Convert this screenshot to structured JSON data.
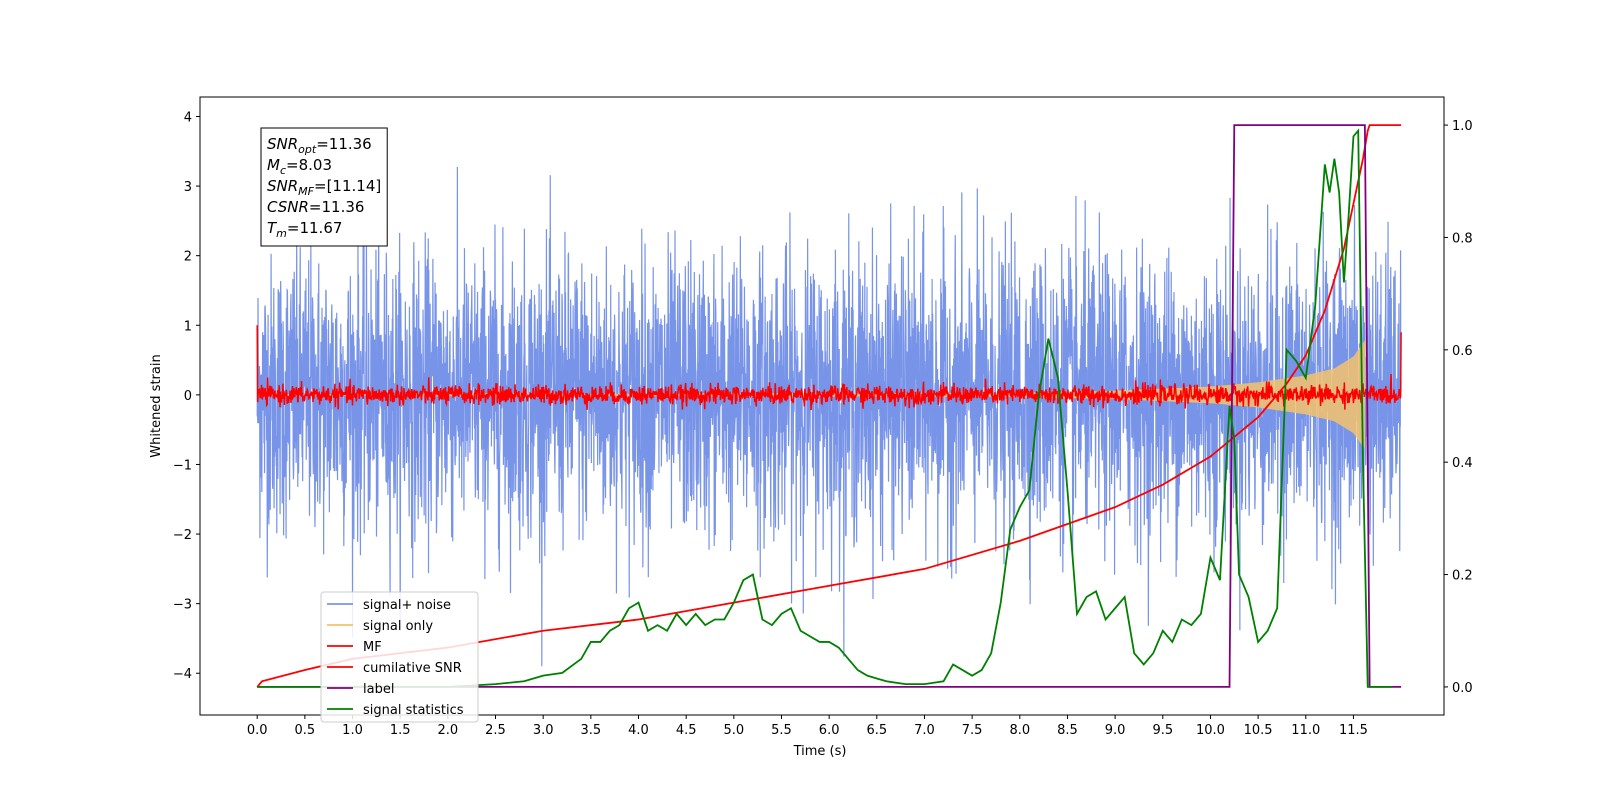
{
  "chart_data": {
    "type": "line",
    "title": "",
    "xlabel": "Time (s)",
    "ylabel": "Whitened strain",
    "xlim": [
      -0.6,
      12.45
    ],
    "ylim": [
      -4.6,
      4.28
    ],
    "y2lim": [
      -0.05,
      1.05
    ],
    "x_ticks": [
      0.0,
      0.5,
      1.0,
      1.5,
      2.0,
      2.5,
      3.0,
      3.5,
      4.0,
      4.5,
      5.0,
      5.5,
      6.0,
      6.5,
      7.0,
      7.5,
      8.0,
      8.5,
      9.0,
      9.5,
      10.0,
      10.5,
      11.0,
      11.5
    ],
    "x_tick_labels": [
      "0.0",
      "0.5",
      "1.0",
      "1.5",
      "2.0",
      "2.5",
      "3.0",
      "3.5",
      "4.0",
      "4.5",
      "5.0",
      "5.5",
      "6.0",
      "6.5",
      "7.0",
      "7.5",
      "8.0",
      "8.5",
      "9.0",
      "9.5",
      "10.0",
      "10.5",
      "11.0",
      "11.5"
    ],
    "y_ticks": [
      -4,
      -3,
      -2,
      -1,
      0,
      1,
      2,
      3,
      4
    ],
    "y_tick_labels": [
      "−4",
      "−3",
      "−2",
      "−1",
      "0",
      "1",
      "2",
      "3",
      "4"
    ],
    "y2_ticks": [
      0.0,
      0.2,
      0.4,
      0.6,
      0.8,
      1.0
    ],
    "y2_tick_labels": [
      "0.0",
      "0.2",
      "0.4",
      "0.6",
      "0.8",
      "1.0"
    ],
    "legend_position": "lower-left",
    "annotation": {
      "lines": [
        {
          "sym": "SNR",
          "sub": "opt",
          "val": "=11.36"
        },
        {
          "sym": "M",
          "sub": "c",
          "val": "=8.03"
        },
        {
          "sym": "SNR",
          "sub": "MF",
          "val": "=[11.14]"
        },
        {
          "sym": "CSNR",
          "sub": "",
          "val": "=11.36"
        },
        {
          "sym": "T",
          "sub": "m",
          "val": "=11.67"
        }
      ]
    },
    "series": [
      {
        "name": "signal+ noise",
        "color": "#7894e8",
        "axis": "left",
        "kind": "noise",
        "x_range": [
          0.0,
          12.0
        ],
        "sigma": 1.0,
        "peak_abs_max": 3.9
      },
      {
        "name": "signal only",
        "color": "#f5c26b",
        "axis": "left",
        "kind": "chirp",
        "x_range": [
          0.0,
          11.62
        ],
        "envelope": {
          "x": [
            0.0,
            8.0,
            9.0,
            10.0,
            10.5,
            11.0,
            11.3,
            11.5,
            11.62
          ],
          "amp": [
            0.0,
            0.03,
            0.06,
            0.12,
            0.18,
            0.28,
            0.38,
            0.55,
            0.78
          ]
        }
      },
      {
        "name": "MF",
        "color": "#ff0000",
        "axis": "left",
        "kind": "noise",
        "x_range": [
          0.0,
          12.0
        ],
        "sigma": 0.07,
        "start_value": 1.0,
        "end_value": 0.9
      },
      {
        "name": "cumilative SNR",
        "color": "#ff0000",
        "axis": "right",
        "kind": "line",
        "x": [
          0.0,
          0.05,
          0.5,
          1.0,
          2.0,
          3.0,
          4.0,
          5.0,
          6.0,
          7.0,
          8.0,
          8.5,
          9.0,
          9.5,
          10.0,
          10.5,
          10.8,
          11.0,
          11.2,
          11.4,
          11.5,
          11.6,
          11.65,
          11.67,
          11.68,
          12.0
        ],
        "y": [
          0.0,
          0.01,
          0.03,
          0.05,
          0.07,
          0.1,
          0.12,
          0.15,
          0.18,
          0.21,
          0.26,
          0.29,
          0.32,
          0.36,
          0.41,
          0.48,
          0.54,
          0.59,
          0.67,
          0.78,
          0.86,
          0.94,
          0.99,
          1.0,
          1.0,
          1.0
        ]
      },
      {
        "name": "label",
        "color": "#800080",
        "axis": "right",
        "kind": "line",
        "x": [
          0.0,
          10.2,
          10.25,
          11.62,
          11.67,
          12.0
        ],
        "y": [
          0.0,
          0.0,
          1.0,
          1.0,
          0.0,
          0.0
        ]
      },
      {
        "name": "signal statistics",
        "color": "#008000",
        "axis": "right",
        "kind": "line",
        "x": [
          0.0,
          0.5,
          1.0,
          1.5,
          2.0,
          2.5,
          2.8,
          3.0,
          3.2,
          3.4,
          3.5,
          3.6,
          3.7,
          3.8,
          3.9,
          4.0,
          4.1,
          4.2,
          4.3,
          4.4,
          4.5,
          4.6,
          4.7,
          4.8,
          4.9,
          5.0,
          5.1,
          5.2,
          5.3,
          5.4,
          5.5,
          5.6,
          5.7,
          5.8,
          5.9,
          6.0,
          6.1,
          6.2,
          6.3,
          6.4,
          6.5,
          6.6,
          6.8,
          7.0,
          7.2,
          7.3,
          7.4,
          7.5,
          7.6,
          7.7,
          7.8,
          7.9,
          8.0,
          8.1,
          8.2,
          8.3,
          8.4,
          8.5,
          8.6,
          8.7,
          8.8,
          8.9,
          9.0,
          9.1,
          9.2,
          9.3,
          9.4,
          9.5,
          9.6,
          9.7,
          9.8,
          9.9,
          10.0,
          10.1,
          10.2,
          10.25,
          10.3,
          10.4,
          10.5,
          10.6,
          10.7,
          10.8,
          10.9,
          11.0,
          11.1,
          11.2,
          11.25,
          11.3,
          11.35,
          11.4,
          11.45,
          11.5,
          11.55,
          11.6,
          11.65,
          11.7,
          11.8,
          11.9
        ],
        "y": [
          0.0,
          0.0,
          0.0,
          0.0,
          0.0,
          0.005,
          0.01,
          0.02,
          0.025,
          0.05,
          0.08,
          0.08,
          0.1,
          0.11,
          0.14,
          0.15,
          0.1,
          0.11,
          0.1,
          0.13,
          0.11,
          0.13,
          0.11,
          0.12,
          0.12,
          0.15,
          0.19,
          0.2,
          0.12,
          0.11,
          0.13,
          0.14,
          0.1,
          0.09,
          0.08,
          0.08,
          0.07,
          0.05,
          0.03,
          0.02,
          0.015,
          0.01,
          0.005,
          0.005,
          0.01,
          0.04,
          0.03,
          0.02,
          0.03,
          0.06,
          0.15,
          0.28,
          0.32,
          0.35,
          0.52,
          0.62,
          0.55,
          0.35,
          0.13,
          0.16,
          0.17,
          0.12,
          0.14,
          0.16,
          0.06,
          0.04,
          0.06,
          0.1,
          0.08,
          0.12,
          0.11,
          0.13,
          0.23,
          0.19,
          0.5,
          0.44,
          0.2,
          0.16,
          0.08,
          0.1,
          0.14,
          0.6,
          0.58,
          0.55,
          0.68,
          0.93,
          0.88,
          0.94,
          0.88,
          0.72,
          0.84,
          0.98,
          0.99,
          0.4,
          0.0,
          0.0,
          0.0,
          0.0
        ]
      }
    ]
  }
}
